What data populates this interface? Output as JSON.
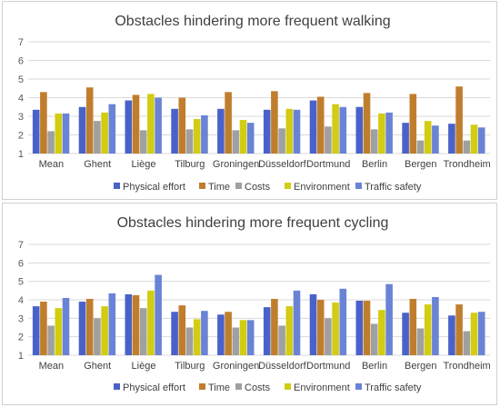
{
  "colors": {
    "physical_effort": "#4a62c8",
    "time": "#c07e2d",
    "costs": "#a0a0a0",
    "environment": "#d2cc12",
    "traffic_safety": "#6a83d6"
  },
  "chart_data": [
    {
      "type": "bar",
      "title": "Obstacles hindering more frequent walking",
      "xlabel": "",
      "ylabel": "",
      "ylim": [
        1,
        7
      ],
      "yticks": [
        "1",
        "2",
        "3",
        "4",
        "5",
        "6",
        "7"
      ],
      "grid": true,
      "legend_position": "bottom",
      "categories": [
        "Mean",
        "Ghent",
        "Liège",
        "Tilburg",
        "Groningen",
        "Düsseldorf",
        "Dortmund",
        "Berlin",
        "Bergen",
        "Trondheim"
      ],
      "series": [
        {
          "name": "Physical effort",
          "color_key": "physical_effort",
          "values": [
            3.35,
            3.5,
            3.85,
            3.4,
            3.4,
            3.35,
            3.85,
            3.5,
            2.65,
            2.6
          ]
        },
        {
          "name": "Time",
          "color_key": "time",
          "values": [
            4.3,
            4.55,
            4.15,
            4.0,
            4.3,
            4.35,
            4.05,
            4.25,
            4.2,
            4.6
          ]
        },
        {
          "name": "Costs",
          "color_key": "costs",
          "values": [
            2.2,
            2.75,
            2.25,
            2.3,
            2.25,
            2.35,
            2.45,
            2.3,
            1.7,
            1.7
          ]
        },
        {
          "name": "Environment",
          "color_key": "environment",
          "values": [
            3.15,
            3.2,
            4.2,
            2.85,
            2.8,
            3.4,
            3.65,
            3.15,
            2.75,
            2.55
          ]
        },
        {
          "name": "Traffic safety",
          "color_key": "traffic_safety",
          "values": [
            3.15,
            3.65,
            4.0,
            3.05,
            2.65,
            3.35,
            3.5,
            3.2,
            2.5,
            2.4
          ]
        }
      ]
    },
    {
      "type": "bar",
      "title": "Obstacles hindering more frequent cycling",
      "xlabel": "",
      "ylabel": "",
      "ylim": [
        1,
        7
      ],
      "yticks": [
        "1",
        "2",
        "3",
        "4",
        "5",
        "6",
        "7"
      ],
      "grid": true,
      "legend_position": "bottom",
      "categories": [
        "Mean",
        "Ghent",
        "Liège",
        "Tilburg",
        "Groningen",
        "Düsseldorf",
        "Dortmund",
        "Berlin",
        "Bergen",
        "Trondheim"
      ],
      "series": [
        {
          "name": "Physical effort",
          "color_key": "physical_effort",
          "values": [
            3.65,
            3.9,
            4.3,
            3.35,
            3.2,
            3.6,
            4.3,
            3.95,
            3.3,
            3.15
          ]
        },
        {
          "name": "Time",
          "color_key": "time",
          "values": [
            3.9,
            4.05,
            4.25,
            3.7,
            3.35,
            4.05,
            4.0,
            3.95,
            4.05,
            3.75
          ]
        },
        {
          "name": "Costs",
          "color_key": "costs",
          "values": [
            2.6,
            3.0,
            3.55,
            2.5,
            2.5,
            2.6,
            3.0,
            2.7,
            2.45,
            2.3
          ]
        },
        {
          "name": "Environment",
          "color_key": "environment",
          "values": [
            3.55,
            3.65,
            4.5,
            2.95,
            2.9,
            3.65,
            3.85,
            3.45,
            3.75,
            3.3
          ]
        },
        {
          "name": "Traffic safety",
          "color_key": "traffic_safety",
          "values": [
            4.1,
            4.35,
            5.35,
            3.4,
            2.9,
            4.5,
            4.6,
            4.85,
            4.15,
            3.35
          ]
        }
      ]
    }
  ]
}
